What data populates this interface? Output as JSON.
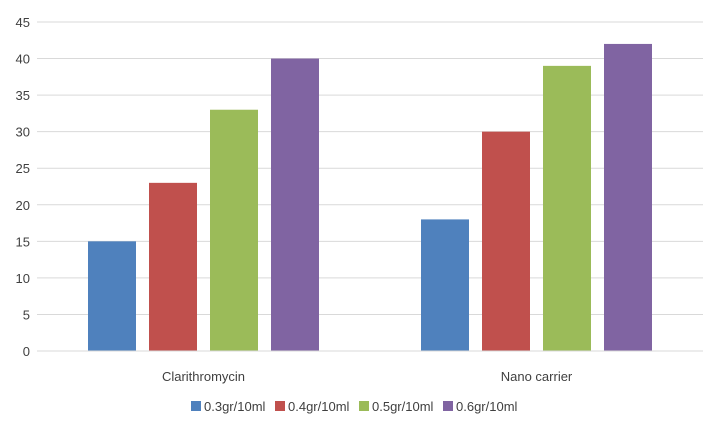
{
  "chart_data": {
    "type": "bar",
    "title": "",
    "xlabel": "",
    "ylabel": "",
    "categories": [
      "Clarithromycin",
      "Nano carrier"
    ],
    "series": [
      {
        "name": "0.3gr/10ml",
        "color": "#4F81BD",
        "values": [
          15,
          18
        ]
      },
      {
        "name": "0.4gr/10ml",
        "color": "#C0504D",
        "values": [
          23,
          30
        ]
      },
      {
        "name": "0.5gr/10ml",
        "color": "#9BBB59",
        "values": [
          33,
          39
        ]
      },
      {
        "name": "0.6gr/10ml",
        "color": "#8064A2",
        "values": [
          40,
          42
        ]
      }
    ],
    "ylim": [
      0,
      45
    ],
    "yticks": [
      0,
      5,
      10,
      15,
      20,
      25,
      30,
      35,
      40,
      45
    ],
    "grid": true,
    "legend": "bottom"
  }
}
